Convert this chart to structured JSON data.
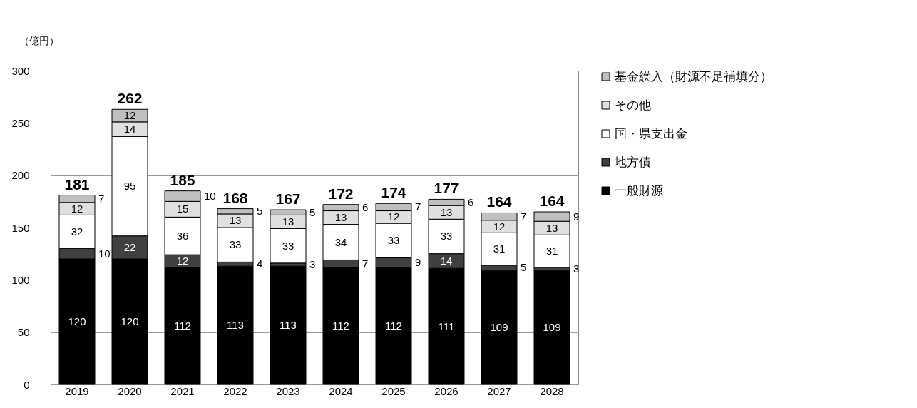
{
  "chart_data": {
    "type": "bar",
    "stacked": true,
    "ylabel": "（億円）",
    "categories": [
      "2019",
      "2020",
      "2021",
      "2022",
      "2023",
      "2024",
      "2025",
      "2026",
      "2027",
      "2028"
    ],
    "series": [
      {
        "name": "一般財源",
        "color": "#000000",
        "values": [
          120,
          120,
          112,
          113,
          113,
          112,
          112,
          111,
          109,
          109
        ]
      },
      {
        "name": "地方債",
        "color": "#404040",
        "values": [
          10,
          22,
          12,
          4,
          3,
          7,
          9,
          14,
          5,
          3
        ]
      },
      {
        "name": "国・県支出金",
        "color": "#ffffff",
        "values": [
          32,
          95,
          36,
          33,
          33,
          34,
          33,
          33,
          31,
          31
        ]
      },
      {
        "name": "その他",
        "color": "#e0e0e0",
        "values": [
          12,
          14,
          15,
          13,
          13,
          13,
          12,
          13,
          12,
          13
        ]
      },
      {
        "name": "基金繰入（財源不足補填分）",
        "color": "#bfbfbf",
        "values": [
          7,
          12,
          10,
          5,
          5,
          6,
          7,
          6,
          7,
          9
        ]
      }
    ],
    "totals": [
      "181",
      "262",
      "185",
      "168",
      "167",
      "172",
      "174",
      "177",
      "164",
      "164"
    ],
    "ylim": [
      0,
      300
    ],
    "yticks": [
      0,
      50,
      100,
      150,
      200,
      250,
      300
    ],
    "grid": "y",
    "legend": "right",
    "data_labels": true
  }
}
